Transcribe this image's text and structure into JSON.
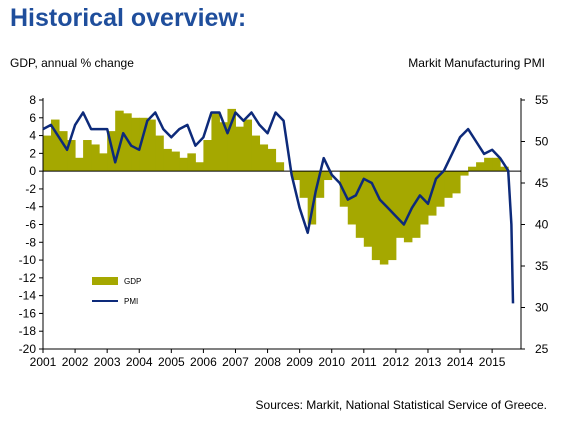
{
  "title": "Historical overview:",
  "source": "Sources: Markit, National Statistical Service of Greece.",
  "colors": {
    "gdp": "#a5a800",
    "pmi": "#0d2a7a",
    "title": "#1f4e9c"
  },
  "chart_data": {
    "type": "bar+line",
    "ylabel_left": "GDP, annual % change",
    "ylabel_right": "Markit Manufacturing PMI",
    "ylim_left": [
      -20,
      8
    ],
    "yticks_left": [
      "8",
      "6",
      "4",
      "2",
      "0",
      "-2",
      "-4",
      "-6",
      "-8",
      "-10",
      "-12",
      "-14",
      "-16",
      "-18",
      "-20"
    ],
    "ylim_right": [
      25,
      55
    ],
    "yticks_right": [
      "55",
      "50",
      "45",
      "40",
      "35",
      "30",
      "25"
    ],
    "xlim": [
      2001,
      2015.9
    ],
    "xticks": [
      "2001",
      "2002",
      "2003",
      "2004",
      "2005",
      "2006",
      "2007",
      "2008",
      "2009",
      "2010",
      "2011",
      "2012",
      "2013",
      "2014",
      "2015"
    ],
    "legend": {
      "position": "bottom-left",
      "entries": [
        "GDP",
        "PMI"
      ]
    },
    "series": [
      {
        "name": "GDP",
        "type": "bar",
        "axis": "left",
        "x": [
          2001.0,
          2001.25,
          2001.5,
          2001.75,
          2002.0,
          2002.25,
          2002.5,
          2002.75,
          2003.0,
          2003.25,
          2003.5,
          2003.75,
          2004.0,
          2004.25,
          2004.5,
          2004.75,
          2005.0,
          2005.25,
          2005.5,
          2005.75,
          2006.0,
          2006.25,
          2006.5,
          2006.75,
          2007.0,
          2007.25,
          2007.5,
          2007.75,
          2008.0,
          2008.25,
          2008.5,
          2008.75,
          2009.0,
          2009.25,
          2009.5,
          2009.75,
          2010.0,
          2010.25,
          2010.5,
          2010.75,
          2011.0,
          2011.25,
          2011.5,
          2011.75,
          2012.0,
          2012.25,
          2012.5,
          2012.75,
          2013.0,
          2013.25,
          2013.5,
          2013.75,
          2014.0,
          2014.25,
          2014.5,
          2014.75,
          2015.0,
          2015.25,
          2015.5
        ],
        "values": [
          4.0,
          5.8,
          4.5,
          3.5,
          1.5,
          3.5,
          3.0,
          2.0,
          4.5,
          6.8,
          6.5,
          6.0,
          6.0,
          5.8,
          4.0,
          2.5,
          2.2,
          1.5,
          2.0,
          1.0,
          3.5,
          6.5,
          5.5,
          7.0,
          5.0,
          5.8,
          4.0,
          3.0,
          2.5,
          1.0,
          0.0,
          -1.0,
          -3.0,
          -6.0,
          -3.0,
          -1.0,
          0.0,
          -4.0,
          -6.0,
          -7.5,
          -8.5,
          -10.0,
          -10.5,
          -10.0,
          -7.5,
          -8.0,
          -7.5,
          -6.0,
          -5.0,
          -4.0,
          -3.0,
          -2.5,
          -0.5,
          0.5,
          1.0,
          1.5,
          1.5,
          0.5,
          0.0
        ]
      },
      {
        "name": "PMI",
        "type": "line",
        "axis": "right",
        "x": [
          2001.0,
          2001.25,
          2001.5,
          2001.75,
          2002.0,
          2002.25,
          2002.5,
          2002.75,
          2003.0,
          2003.25,
          2003.5,
          2003.75,
          2004.0,
          2004.25,
          2004.5,
          2004.75,
          2005.0,
          2005.25,
          2005.5,
          2005.75,
          2006.0,
          2006.25,
          2006.5,
          2006.75,
          2007.0,
          2007.25,
          2007.5,
          2007.75,
          2008.0,
          2008.25,
          2008.5,
          2008.75,
          2009.0,
          2009.25,
          2009.5,
          2009.75,
          2010.0,
          2010.25,
          2010.5,
          2010.75,
          2011.0,
          2011.25,
          2011.5,
          2011.75,
          2012.0,
          2012.25,
          2012.5,
          2012.75,
          2013.0,
          2013.25,
          2013.5,
          2013.75,
          2014.0,
          2014.25,
          2014.5,
          2014.75,
          2015.0,
          2015.25,
          2015.5,
          2015.6,
          2015.65
        ],
        "values": [
          51.5,
          52.0,
          50.5,
          49.0,
          52.0,
          53.5,
          51.5,
          51.5,
          51.5,
          47.5,
          51.0,
          49.5,
          49.0,
          52.5,
          53.5,
          51.5,
          50.5,
          51.5,
          52.0,
          49.5,
          50.5,
          53.5,
          53.5,
          51.0,
          53.5,
          52.5,
          53.5,
          52.0,
          51.0,
          53.5,
          52.5,
          46.0,
          42.0,
          39.0,
          44.0,
          48.0,
          46.0,
          45.0,
          43.0,
          43.5,
          45.5,
          45.0,
          43.0,
          42.0,
          41.0,
          40.0,
          42.0,
          43.5,
          42.5,
          45.5,
          46.5,
          48.5,
          50.5,
          51.5,
          50.0,
          48.5,
          49.0,
          48.0,
          46.5,
          40.0,
          30.5
        ]
      }
    ]
  }
}
